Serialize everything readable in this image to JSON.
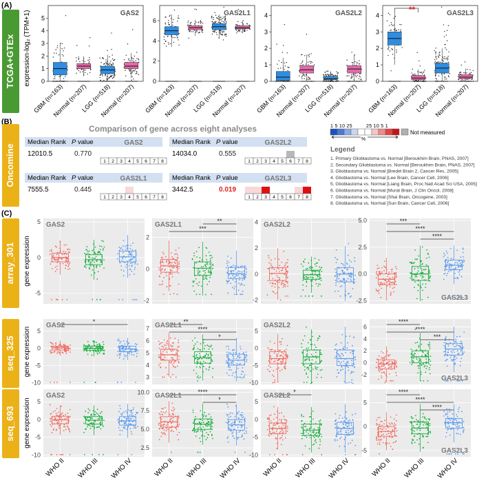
{
  "figure": {
    "panel_a_label": "(A)",
    "panel_b_label": "(B)",
    "panel_c_label": "(C)",
    "colors": {
      "green_tab": "#4a9a33",
      "orange_tab": "#ebb218",
      "blue_box": "#2f8de0",
      "pink_box": "#e46aa8",
      "c_red": "#f26a60",
      "c_green": "#1bb040",
      "c_blue": "#5b9bf0",
      "facet_bg": "#ebebeb",
      "star_red": "#e02020"
    }
  },
  "panel_a": {
    "tab_label": "TCGA+GTEx",
    "ylabel": "expression-log₂ (TPM+1)",
    "groups": [
      "GBM (n=163)",
      "Normal (n=207)",
      "LGG (n=518)",
      "Normal (n=207)"
    ],
    "charts": [
      {
        "gene": "GAS2",
        "yticks": [
          0,
          1,
          2,
          3,
          4,
          5
        ],
        "ymax": 6,
        "boxes": [
          [
            0.5,
            1.0,
            1.5
          ],
          [
            1.0,
            1.2,
            1.4
          ],
          [
            0.6,
            0.9,
            1.2
          ],
          [
            1.0,
            1.2,
            1.5
          ]
        ],
        "sig": ""
      },
      {
        "gene": "GAS2L1",
        "yticks": [
          0,
          2,
          4,
          6
        ],
        "ymax": 7.5,
        "boxes": [
          [
            4.6,
            5.0,
            5.4
          ],
          [
            5.1,
            5.3,
            5.5
          ],
          [
            5.1,
            5.4,
            5.7
          ],
          [
            5.2,
            5.3,
            5.5
          ]
        ],
        "sig": ""
      },
      {
        "gene": "GAS2L2",
        "yticks": [
          0,
          1,
          2,
          3,
          4
        ],
        "ymax": 4.6,
        "boxes": [
          [
            0.05,
            0.25,
            0.6
          ],
          [
            0.5,
            0.7,
            0.95
          ],
          [
            0.1,
            0.15,
            0.3
          ],
          [
            0.5,
            0.75,
            0.95
          ]
        ],
        "sig": ""
      },
      {
        "gene": "GAS2L3",
        "yticks": [
          0,
          1,
          2,
          3,
          4
        ],
        "ymax": 4.6,
        "boxes": [
          [
            2.2,
            2.6,
            3.0
          ],
          [
            0.1,
            0.2,
            0.35
          ],
          [
            0.5,
            0.8,
            1.1
          ],
          [
            0.15,
            0.25,
            0.4
          ]
        ],
        "sig": "**"
      }
    ]
  },
  "panel_b": {
    "tab_label": "Oncomine",
    "title": "Comparison of gene across eight analyses",
    "median_rank_label": "Median Rank",
    "pvalue_label": "P value",
    "cells": [
      {
        "gene": "GAS2",
        "median_rank": "12010.5",
        "pvalue": "0.770",
        "highlight": [],
        "red": [],
        "gray": []
      },
      {
        "gene": "GAS2L2",
        "median_rank": "14034.0",
        "pvalue": "0.555",
        "highlight": [],
        "red": [],
        "gray": [
          6
        ]
      },
      {
        "gene": "GAS2L1",
        "median_rank": "7555.5",
        "pvalue": "0.445",
        "highlight": [
          4
        ],
        "red": [],
        "gray": []
      },
      {
        "gene": "GAS2L3",
        "median_rank": "3442.5",
        "pvalue": "0.019",
        "highlight": [
          1,
          2,
          7
        ],
        "red": [
          3,
          8
        ],
        "gray": []
      }
    ],
    "numbers": [
      "1",
      "2",
      "3",
      "4",
      "5",
      "6",
      "7",
      "8"
    ],
    "scale_labels_left": "1  5  10  25",
    "scale_labels_right": "25  10  5  1",
    "percent_label": "%",
    "not_measured": "Not measured",
    "legend_title": "Legend",
    "legend_items": [
      "1. Primary Glioblastoma  vs. Normal [Beroukhim Brain, PNAS, 2007]",
      "2. Secondary Glioblastoma  vs. Normal [Beroukhim Brain, PNAS, 2007]",
      "3. Glioblastoma  vs. Normal [Bredel Brain 2, Cancer Res, 2005]",
      "4. Glioblastoma  vs. Normal [Lee Brain, Cancer Cell, 2006]",
      "5. Glioblastoma  vs. Normal [Liang Brain, Proc Natl Acad Sci USA, 2005]",
      "6. Glioblastoma  vs. Normal [Murat Brain, J Clin Oncol, 2008]",
      "7. Glioblastoma  vs. Normal [Shai Brain, Oncogene, 2003]",
      "8. Glioblastoma  vs. Normal [Sun Brain, Cancer Cell, 2006]"
    ]
  },
  "panel_c": {
    "ylabel": "gene expression",
    "xcats": [
      "WHO II",
      "WHO III",
      "WHO IV"
    ],
    "rows": [
      {
        "tab": "array_301",
        "charts": [
          {
            "gene": "GAS2",
            "gene_pos": "tl",
            "ymin": -6.5,
            "ymax": 5.5,
            "yticks": [
              "5",
              "0",
              "-5"
            ],
            "ytickv": [
              5,
              0,
              -5
            ],
            "boxes": [
              [
                -0.6,
                0,
                0.6
              ],
              [
                -1.0,
                -0.3,
                0.4
              ],
              [
                -0.6,
                0.1,
                0.9
              ]
            ],
            "sigs": []
          },
          {
            "gene": "GAS2L1",
            "gene_pos": "tl",
            "ymin": -2.2,
            "ymax": 3.2,
            "yticks": [
              "2",
              "0",
              "-2"
            ],
            "ytickv": [
              2,
              0,
              -2
            ],
            "boxes": [
              [
                -0.2,
                0.2,
                0.6
              ],
              [
                -0.4,
                0.05,
                0.45
              ],
              [
                -0.6,
                -0.3,
                0.1
              ]
            ],
            "sigs": [
              {
                "a": 1,
                "b": 2,
                "t": "**",
                "lvl": 0
              },
              {
                "a": 0,
                "b": 2,
                "t": "***",
                "lvl": 1
              }
            ]
          },
          {
            "gene": "GAS2L2",
            "gene_pos": "tl",
            "ymin": -2.3,
            "ymax": 4.3,
            "yticks": [
              "4",
              "2",
              "0",
              "-2"
            ],
            "ytickv": [
              4,
              2,
              0,
              -2
            ],
            "boxes": [
              [
                -0.5,
                0.05,
                0.5
              ],
              [
                -0.4,
                -0.05,
                0.3
              ],
              [
                -0.6,
                0.0,
                0.5
              ]
            ],
            "sigs": []
          },
          {
            "gene": "GAS2L3",
            "gene_pos": "br",
            "ymin": -2.8,
            "ymax": 5.2,
            "yticks": [
              "5.0",
              "2.5",
              "0.0",
              "-2.5"
            ],
            "ytickv": [
              5,
              2.5,
              0,
              -2.5
            ],
            "boxes": [
              [
                -1.0,
                -0.5,
                0.0
              ],
              [
                -0.6,
                0.0,
                0.7
              ],
              [
                0.4,
                0.8,
                1.3
              ]
            ],
            "sigs": [
              {
                "a": 0,
                "b": 1,
                "t": "***",
                "lvl": 0
              },
              {
                "a": 0,
                "b": 2,
                "t": "****",
                "lvl": 1
              },
              {
                "a": 1,
                "b": 2,
                "t": "****",
                "lvl": 2
              }
            ]
          }
        ]
      },
      {
        "tab": "seq_325",
        "charts": [
          {
            "gene": "GAS2",
            "gene_pos": "tl",
            "ymin": -10.5,
            "ymax": 8.5,
            "yticks": [
              "5",
              "0",
              "-5",
              "-10"
            ],
            "ytickv": [
              5,
              0,
              -5,
              -10
            ],
            "boxes": [
              [
                -0.5,
                0.1,
                0.6
              ],
              [
                -0.6,
                0.0,
                0.6
              ],
              [
                -1.0,
                -0.2,
                0.6
              ]
            ],
            "sigs": [
              {
                "a": 0,
                "b": 2,
                "t": "*",
                "lvl": 0
              }
            ]
          },
          {
            "gene": "GAS2L1",
            "gene_pos": "tl",
            "ymin": 2.4,
            "ymax": 7.8,
            "yticks": [
              "7",
              "6",
              "5",
              "4",
              "3"
            ],
            "ytickv": [
              7,
              6,
              5,
              4,
              3
            ],
            "boxes": [
              [
                4.4,
                4.85,
                5.3
              ],
              [
                4.15,
                4.6,
                5.1
              ],
              [
                4.0,
                4.4,
                4.9
              ]
            ],
            "sigs": [
              {
                "a": 0,
                "b": 1,
                "t": "**",
                "lvl": 0
              },
              {
                "a": 0,
                "b": 2,
                "t": "****",
                "lvl": 1
              },
              {
                "a": 1,
                "b": 2,
                "t": "*",
                "lvl": 2
              }
            ]
          },
          {
            "gene": "GAS2L2",
            "gene_pos": "tl",
            "ymin": -10.5,
            "ymax": 8.5,
            "yticks": [
              "5",
              "0",
              "-5",
              "-10"
            ],
            "ytickv": [
              5,
              0,
              -5,
              -10
            ],
            "boxes": [
              [
                -4.5,
                -3.0,
                -1.0
              ],
              [
                -4.5,
                -2.5,
                -0.5
              ],
              [
                -5.0,
                -3.0,
                -0.5
              ]
            ],
            "sigs": []
          },
          {
            "gene": "GAS2L3",
            "gene_pos": "br",
            "ymin": -3.6,
            "ymax": 7.3,
            "yticks": [
              "6",
              "4",
              "2",
              "0",
              "-2"
            ],
            "ytickv": [
              6,
              4,
              2,
              0,
              -2
            ],
            "boxes": [
              [
                -1.0,
                -0.2,
                0.5
              ],
              [
                0.0,
                1.0,
                2.0
              ],
              [
                1.3,
                2.3,
                3.2
              ]
            ],
            "sigs": [
              {
                "a": 0,
                "b": 1,
                "t": "****",
                "lvl": 0
              },
              {
                "a": 0,
                "b": 2,
                "t": "****",
                "lvl": 1
              },
              {
                "a": 1,
                "b": 2,
                "t": "***",
                "lvl": 2
              }
            ]
          }
        ]
      },
      {
        "tab": "seq_693",
        "charts": [
          {
            "gene": "GAS2",
            "gene_pos": "tl",
            "ymin": -10.5,
            "ymax": 8.5,
            "yticks": [
              "5",
              "0",
              "-5",
              "-10"
            ],
            "ytickv": [
              5,
              0,
              -5,
              -10
            ],
            "boxes": [
              [
                -1.2,
                -0.1,
                0.9
              ],
              [
                -1.3,
                -0.2,
                0.8
              ],
              [
                -1.6,
                -0.4,
                0.8
              ]
            ],
            "sigs": []
          },
          {
            "gene": "GAS2L1",
            "gene_pos": "tl",
            "ymin": 1.3,
            "ymax": 10.4,
            "yticks": [
              "10.0",
              "7.5",
              "5.0",
              "2.5"
            ],
            "ytickv": [
              10,
              7.5,
              5,
              2.5
            ],
            "boxes": [
              [
                5.3,
                6.0,
                6.7
              ],
              [
                5.0,
                5.7,
                6.4
              ],
              [
                4.9,
                5.6,
                6.3
              ]
            ],
            "sigs": [
              {
                "a": 0,
                "b": 2,
                "t": "****",
                "lvl": 0
              },
              {
                "a": 1,
                "b": 2,
                "t": "*",
                "lvl": 1
              }
            ]
          },
          {
            "gene": "GAS2L2",
            "gene_pos": "tl",
            "ymin": -10.5,
            "ymax": 8.5,
            "yticks": [
              "5",
              "0",
              "-5",
              "-10"
            ],
            "ytickv": [
              5,
              0,
              -5,
              -10
            ],
            "boxes": [
              [
                -4.0,
                -2.5,
                -1.0
              ],
              [
                -4.5,
                -3.0,
                -1.3
              ],
              [
                -4.2,
                -2.5,
                -0.8
              ]
            ],
            "sigs": [
              {
                "a": 0,
                "b": 1,
                "t": "*",
                "lvl": 0
              }
            ]
          },
          {
            "gene": "GAS2L3",
            "gene_pos": "br",
            "ymin": -6.3,
            "ymax": 7.8,
            "yticks": [
              "5",
              "0",
              "-5"
            ],
            "ytickv": [
              5,
              0,
              -5
            ],
            "boxes": [
              [
                -2.0,
                -1.0,
                0.0
              ],
              [
                -1.5,
                -0.3,
                1.0
              ],
              [
                -0.3,
                0.8,
                1.7
              ]
            ],
            "sigs": [
              {
                "a": 0,
                "b": 1,
                "t": "****",
                "lvl": 0
              },
              {
                "a": 0,
                "b": 2,
                "t": "****",
                "lvl": 1
              },
              {
                "a": 1,
                "b": 2,
                "t": "****",
                "lvl": 2
              }
            ]
          }
        ]
      }
    ]
  }
}
